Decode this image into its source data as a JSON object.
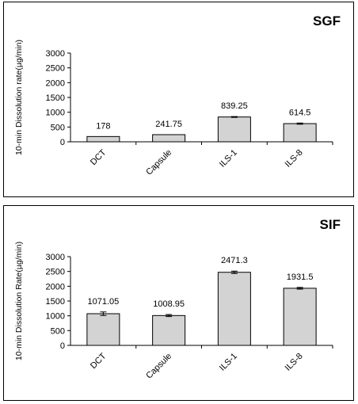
{
  "chart_data": [
    {
      "type": "bar",
      "title": "SGF",
      "ylabel": "10-min Dissolution rate(µg/min)",
      "xlabel": "",
      "categories": [
        "DCT",
        "Capsule",
        "ILS-1",
        "ILS-8"
      ],
      "values": [
        178,
        241.75,
        839.25,
        614.5
      ],
      "value_labels": [
        "178",
        "241.75",
        "839.25",
        "614.5"
      ],
      "errors": [
        0,
        0,
        15,
        20
      ],
      "ylim": [
        0,
        3000
      ],
      "yticks": [
        "0",
        "500",
        "1000",
        "1500",
        "2000",
        "2500",
        "3000"
      ],
      "bar_color": "#d3d3d3"
    },
    {
      "type": "bar",
      "title": "SIF",
      "ylabel": "10-min Dissolution Rate(µg/min)",
      "xlabel": "",
      "categories": [
        "DCT",
        "Capsule",
        "ILS-1",
        "ILS-8"
      ],
      "values": [
        1071.05,
        1008.95,
        2471.3,
        1931.5
      ],
      "value_labels": [
        "1071.05",
        "1008.95",
        "2471.3",
        "1931.5"
      ],
      "errors": [
        60,
        35,
        40,
        30
      ],
      "ylim": [
        0,
        3000
      ],
      "yticks": [
        "0",
        "500",
        "1000",
        "1500",
        "2000",
        "2500",
        "3000"
      ],
      "bar_color": "#d3d3d3"
    }
  ]
}
